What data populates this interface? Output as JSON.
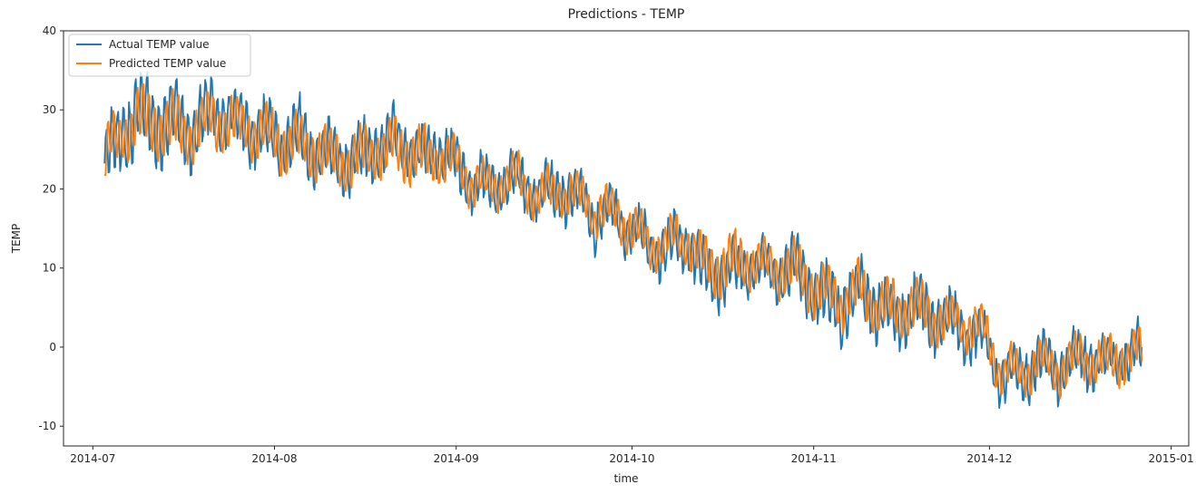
{
  "chart_data": {
    "type": "line",
    "title": "Predictions - TEMP",
    "xlabel": "time",
    "ylabel": "TEMP",
    "x_range": [
      "2014-06-26",
      "2015-01-04"
    ],
    "ylim": [
      -12.5,
      40
    ],
    "x_ticks": [
      "2014-07",
      "2014-08",
      "2014-09",
      "2014-10",
      "2014-11",
      "2014-12",
      "2015-01"
    ],
    "y_ticks": [
      -10,
      0,
      10,
      20,
      30,
      40
    ],
    "grid": false,
    "legend_position": "top-left",
    "x": [
      "2014-07-03",
      "2014-07-06",
      "2014-07-09",
      "2014-07-12",
      "2014-07-15",
      "2014-07-18",
      "2014-07-21",
      "2014-07-24",
      "2014-07-27",
      "2014-07-30",
      "2014-08-02",
      "2014-08-05",
      "2014-08-08",
      "2014-08-11",
      "2014-08-14",
      "2014-08-17",
      "2014-08-20",
      "2014-08-23",
      "2014-08-26",
      "2014-08-29",
      "2014-09-01",
      "2014-09-04",
      "2014-09-07",
      "2014-09-10",
      "2014-09-13",
      "2014-09-16",
      "2014-09-19",
      "2014-09-22",
      "2014-09-25",
      "2014-09-28",
      "2014-10-01",
      "2014-10-04",
      "2014-10-07",
      "2014-10-10",
      "2014-10-13",
      "2014-10-16",
      "2014-10-19",
      "2014-10-22",
      "2014-10-25",
      "2014-10-28",
      "2014-10-31",
      "2014-11-03",
      "2014-11-06",
      "2014-11-09",
      "2014-11-12",
      "2014-11-15",
      "2014-11-18",
      "2014-11-21",
      "2014-11-24",
      "2014-11-27",
      "2014-11-30",
      "2014-12-03",
      "2014-12-06",
      "2014-12-09",
      "2014-12-12",
      "2014-12-15",
      "2014-12-18",
      "2014-12-21",
      "2014-12-24",
      "2014-12-27"
    ],
    "series": [
      {
        "name": "Actual TEMP value",
        "color": "#1f77b4",
        "values": [
          23,
          27,
          30,
          28,
          29,
          27,
          30,
          29,
          28,
          27,
          26,
          27,
          25,
          24,
          23,
          25,
          26,
          26,
          24,
          25,
          23,
          21,
          20,
          22,
          20,
          19,
          20,
          19,
          16,
          17,
          15,
          13,
          12,
          14,
          10,
          9,
          10,
          11,
          9,
          10,
          8,
          6,
          5,
          7,
          5,
          4,
          5,
          4,
          3,
          2,
          1,
          -4,
          -3,
          -2,
          -3,
          -2,
          -1,
          -2,
          -1,
          -1
        ],
        "amplitude": [
          7,
          7,
          8,
          8,
          8,
          7,
          7,
          6,
          6,
          6,
          6,
          6,
          6,
          6,
          6,
          6,
          6,
          6,
          6,
          5,
          5,
          5,
          5,
          5,
          5,
          5,
          5,
          5,
          5,
          5,
          5,
          5,
          5,
          5,
          6,
          6,
          6,
          5,
          5,
          6,
          6,
          6,
          6,
          6,
          6,
          6,
          6,
          6,
          5,
          5,
          5,
          5,
          5,
          5,
          5,
          5,
          5,
          5,
          5,
          5
        ]
      },
      {
        "name": "Predicted TEMP value",
        "color": "#ff7f0e",
        "values": [
          24,
          27,
          29,
          28,
          28,
          27,
          29,
          28,
          28,
          27,
          26,
          26,
          25,
          24,
          23,
          25,
          25,
          25,
          24,
          24,
          23,
          21,
          20,
          22,
          20,
          19,
          20,
          19,
          17,
          17,
          15,
          13,
          13,
          14,
          11,
          10,
          11,
          11,
          10,
          10,
          8,
          7,
          6,
          7,
          5,
          5,
          5,
          4,
          3,
          3,
          2,
          -3,
          -3,
          -2,
          -3,
          -2,
          -1,
          -2,
          -1,
          -1
        ],
        "amplitude": [
          5,
          5,
          6,
          6,
          6,
          5,
          5,
          5,
          5,
          5,
          5,
          5,
          5,
          5,
          5,
          5,
          5,
          5,
          5,
          4,
          4,
          4,
          4,
          4,
          4,
          4,
          4,
          4,
          4,
          4,
          4,
          4,
          4,
          4,
          5,
          5,
          5,
          4,
          4,
          5,
          5,
          5,
          5,
          5,
          5,
          5,
          5,
          5,
          4,
          4,
          4,
          4,
          4,
          4,
          4,
          4,
          4,
          4,
          4,
          4
        ]
      }
    ]
  }
}
